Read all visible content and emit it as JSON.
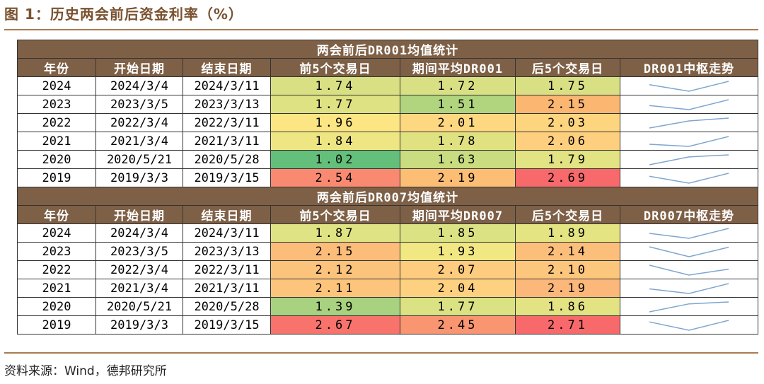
{
  "title": "图 1：历史两会前后资金利率（%）",
  "source": "资料来源：Wind，德邦研究所",
  "columns": [
    "年份",
    "开始日期",
    "结束日期",
    "前5个交易日",
    "期间平均DR001",
    "后5个交易日",
    "DR001中枢走势"
  ],
  "columns_dr007": [
    "年份",
    "开始日期",
    "结束日期",
    "前5个交易日",
    "期间平均DR007",
    "后5个交易日",
    "DR007中枢走势"
  ],
  "colors": {
    "header_bg": "#7e6046",
    "header_text": "#ffffff",
    "title": "#7a5230",
    "rule": "#a87c52",
    "spark": "#7ea6cf"
  },
  "chart_data": [
    {
      "type": "table",
      "title": "两会前后DR001均值统计",
      "columns": [
        "年份",
        "开始日期",
        "结束日期",
        "前5个交易日",
        "期间平均DR001",
        "后5个交易日",
        "DR001中枢走势"
      ],
      "rows": [
        {
          "year": "2024",
          "start": "2024/3/4",
          "end": "2024/3/11",
          "values": [
            "1.74",
            "1.72",
            "1.75"
          ],
          "bg": [
            "#d8e083",
            "#d8e083",
            "#d8e083"
          ]
        },
        {
          "year": "2023",
          "start": "2023/3/5",
          "end": "2023/3/13",
          "values": [
            "1.77",
            "1.51",
            "2.15"
          ],
          "bg": [
            "#dfe282",
            "#b1d57e",
            "#fbb672"
          ]
        },
        {
          "year": "2022",
          "start": "2022/3/4",
          "end": "2022/3/11",
          "values": [
            "1.96",
            "2.01",
            "2.03"
          ],
          "bg": [
            "#fbe683",
            "#fed880",
            "#fed57f"
          ]
        },
        {
          "year": "2021",
          "start": "2021/3/4",
          "end": "2021/3/11",
          "values": [
            "1.84",
            "1.78",
            "2.06"
          ],
          "bg": [
            "#eee683",
            "#e0e282",
            "#fdcf7e"
          ]
        },
        {
          "year": "2020",
          "start": "2020/5/21",
          "end": "2020/5/28",
          "values": [
            "1.02",
            "1.63",
            "1.79"
          ],
          "bg": [
            "#64bf7b",
            "#c9dc80",
            "#e2e382"
          ]
        },
        {
          "year": "2019",
          "start": "2019/3/3",
          "end": "2019/3/15",
          "values": [
            "2.54",
            "2.19",
            "2.69"
          ],
          "bg": [
            "#f98a71",
            "#fcbe75",
            "#f8696b"
          ]
        }
      ]
    },
    {
      "type": "table",
      "title": "两会前后DR007均值统计",
      "columns": [
        "年份",
        "开始日期",
        "结束日期",
        "前5个交易日",
        "期间平均DR007",
        "后5个交易日",
        "DR007中枢走势"
      ],
      "rows": [
        {
          "year": "2024",
          "start": "2024/3/4",
          "end": "2024/3/11",
          "values": [
            "1.87",
            "1.85",
            "1.89"
          ],
          "bg": [
            "#e0e383",
            "#dbe283",
            "#e5e483"
          ]
        },
        {
          "year": "2023",
          "start": "2023/3/5",
          "end": "2023/3/13",
          "values": [
            "2.15",
            "1.93",
            "2.14"
          ],
          "bg": [
            "#fcbd7b",
            "#f1e884",
            "#fcbf7b"
          ]
        },
        {
          "year": "2022",
          "start": "2022/3/4",
          "end": "2022/3/11",
          "values": [
            "2.12",
            "2.07",
            "2.10"
          ],
          "bg": [
            "#fcc37c",
            "#fdcc7e",
            "#fdc67d"
          ]
        },
        {
          "year": "2021",
          "start": "2021/3/4",
          "end": "2021/3/11",
          "values": [
            "2.11",
            "2.04",
            "2.19"
          ],
          "bg": [
            "#fdc47c",
            "#fdd17f",
            "#fcb77a"
          ]
        },
        {
          "year": "2020",
          "start": "2020/5/21",
          "end": "2020/5/28",
          "values": [
            "1.39",
            "1.77",
            "1.86"
          ],
          "bg": [
            "#a8d27f",
            "#dae283",
            "#e3e383"
          ]
        },
        {
          "year": "2019",
          "start": "2019/3/3",
          "end": "2019/3/15",
          "values": [
            "2.67",
            "2.45",
            "2.71"
          ],
          "bg": [
            "#f8736c",
            "#f99571",
            "#f8696b"
          ]
        }
      ]
    }
  ]
}
